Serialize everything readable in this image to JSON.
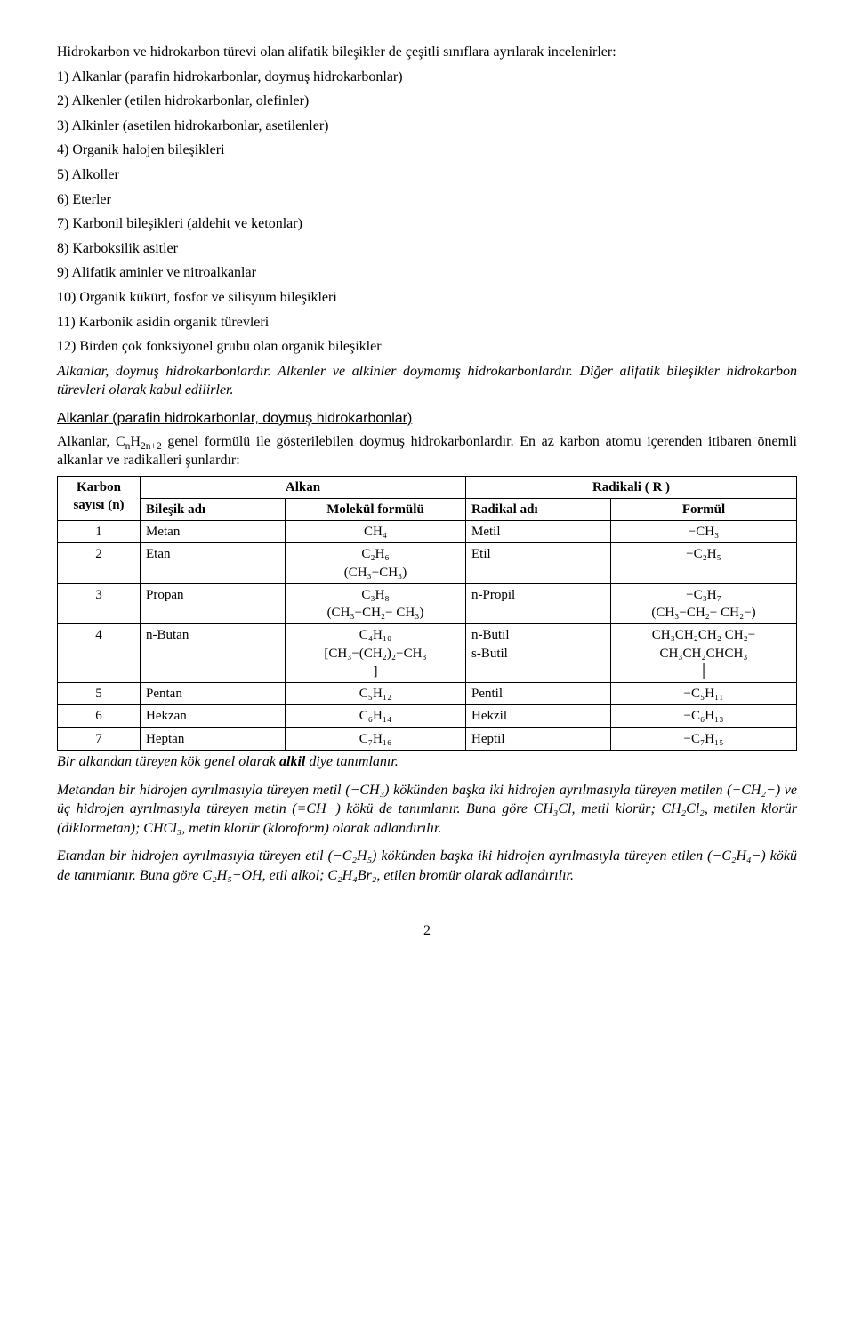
{
  "intro": "Hidrokarbon ve hidrokarbon türevi olan alifatik bileşikler de çeşitli sınıflara ayrılarak incelenirler:",
  "list": [
    "1) Alkanlar (parafin hidrokarbonlar, doymuş hidrokarbonlar)",
    "2) Alkenler (etilen hidrokarbonlar, olefinler)",
    "3) Alkinler (asetilen hidrokarbonlar, asetilenler)",
    "4) Organik halojen bileşikleri",
    "5) Alkoller",
    "6) Eterler",
    "7) Karbonil bileşikleri (aldehit ve ketonlar)",
    "8) Karboksilik asitler",
    "9) Alifatik aminler ve nitroalkanlar",
    "10) Organik kükürt, fosfor ve silisyum bileşikleri",
    "11) Karbonik asidin organik türevleri",
    "12) Birden çok fonksiyonel grubu olan organik bileşikler"
  ],
  "italic1": "Alkanlar, doymuş hidrokarbonlardır. Alkenler ve alkinler doymamış hidrokarbonlardır. Diğer alifatik bileşikler hidrokarbon türevleri olarak kabul edilirler.",
  "section_head": "Alkanlar (parafin hidrokarbonlar, doymuş hidrokarbonlar)",
  "alkan_intro_a": "Alkanlar, C",
  "alkan_intro_b": "H",
  "alkan_intro_c": " genel formülü ile gösterilebilen doymuş hidrokarbonlardır. En az karbon atomu içerenden itibaren önemli alkanlar ve radikalleri şunlardır:",
  "table": {
    "h1": "Karbon sayısı (n)",
    "h2": "Alkan",
    "h3": "Radikali ( R )",
    "h2a": "Bileşik adı",
    "h2b": "Molekül formülü",
    "h3a": "Radikal adı",
    "h3b": "Formül",
    "rows": [
      {
        "n": "1",
        "name": "Metan",
        "mf": "CH₄",
        "rad": "Metil",
        "rf": "−CH₃"
      },
      {
        "n": "2",
        "name": "Etan",
        "mf": "C₂H₆<br>(CH₃−CH₃)",
        "rad": "Etil",
        "rf": "−C₂H₅"
      },
      {
        "n": "3",
        "name": "Propan",
        "mf": "C₃H₈<br>(CH₃−CH₂− CH₃)",
        "rad": "n-Propil",
        "rf": "−C₃H₇<br>(CH₃−CH₂− CH₂−)"
      },
      {
        "n": "4",
        "name": "n-Butan",
        "mf": "C₄H₁₀<br>[CH₃−(CH₂)₂−CH₃<br>]",
        "rad": "n-Butil<br>s-Butil",
        "rf": "CH₃CH₂CH₂ CH₂−<br>CH₃CH₂CHCH₃<br>│"
      },
      {
        "n": "5",
        "name": "Pentan",
        "mf": "C₅H₁₂",
        "rad": "Pentil",
        "rf": "−C₅H₁₁"
      },
      {
        "n": "6",
        "name": "Hekzan",
        "mf": "C₆H₁₄",
        "rad": "Hekzil",
        "rf": "−C₆H₁₃"
      },
      {
        "n": "7",
        "name": "Heptan",
        "mf": "C₇H₁₆",
        "rad": "Heptil",
        "rf": "−C₇H₁₅"
      }
    ]
  },
  "post_table": "Bir alkandan türeyen kök genel olarak <b><i>alkil</i></b> diye tanımlanır.",
  "para_metan": "Metandan bir hidrojen ayrılmasıyla türeyen metil (−CH₃) kökünden başka iki hidrojen ayrılmasıyla türeyen metilen (−CH₂−) ve üç hidrojen ayrılmasıyla türeyen metin (=CH−) kökü de tanımlanır. Buna göre CH₃Cl, metil klorür; CH₂Cl₂, metilen klorür (diklormetan); CHCl₃, metin klorür (kloroform) olarak adlandırılır.",
  "para_etan": "Etandan bir hidrojen ayrılmasıyla türeyen etil (−C₂H₅) kökünden başka iki hidrojen ayrılmasıyla türeyen etilen (−C₂H₄−) kökü de tanımlanır. Buna göre C₂H₅−OH, etil alkol; C₂H₄Br₂, etilen bromür olarak adlandırılır.",
  "page_num": "2"
}
